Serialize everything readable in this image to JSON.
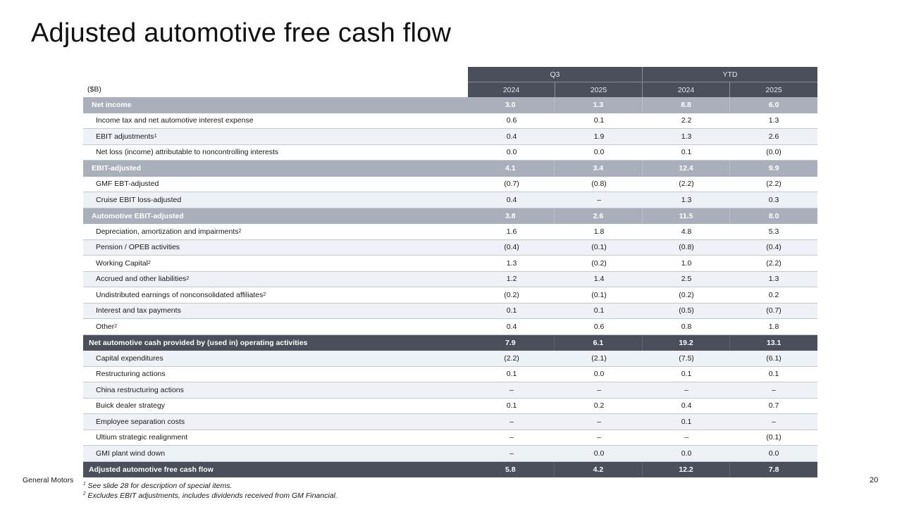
{
  "title": "Adjusted automotive free cash flow",
  "table": {
    "unit_label": "($B)",
    "group_headers": [
      "Q3",
      "YTD"
    ],
    "column_headers": [
      "2024",
      "2025",
      "2024",
      "2025"
    ],
    "rows": [
      {
        "label": "Net income",
        "sup": "",
        "type": "sub",
        "values": [
          "3.0",
          "1.3",
          "8.8",
          "6.0"
        ]
      },
      {
        "label": "Income tax and net automotive interest expense",
        "sup": "",
        "type": "plain",
        "values": [
          "0.6",
          "0.1",
          "2.2",
          "1.3"
        ]
      },
      {
        "label": "EBIT adjustments",
        "sup": "1",
        "type": "alt",
        "values": [
          "0.4",
          "1.9",
          "1.3",
          "2.6"
        ]
      },
      {
        "label": "Net loss (income) attributable to noncontrolling interests",
        "sup": "",
        "type": "plain",
        "values": [
          "0.0",
          "0.0",
          "0.1",
          "(0.0)"
        ]
      },
      {
        "label": "EBIT-adjusted",
        "sup": "",
        "type": "sub",
        "values": [
          "4.1",
          "3.4",
          "12.4",
          "9.9"
        ]
      },
      {
        "label": "GMF EBT-adjusted",
        "sup": "",
        "type": "plain",
        "values": [
          "(0.7)",
          "(0.8)",
          "(2.2)",
          "(2.2)"
        ]
      },
      {
        "label": "Cruise EBIT loss-adjusted",
        "sup": "",
        "type": "alt",
        "values": [
          "0.4",
          "–",
          "1.3",
          "0.3"
        ]
      },
      {
        "label": "Automotive EBIT-adjusted",
        "sup": "",
        "type": "sub",
        "values": [
          "3.8",
          "2.6",
          "11.5",
          "8.0"
        ]
      },
      {
        "label": "Depreciation, amortization and impairments",
        "sup": "2",
        "type": "plain",
        "values": [
          "1.6",
          "1.8",
          "4.8",
          "5.3"
        ]
      },
      {
        "label": "Pension / OPEB activities",
        "sup": "",
        "type": "alt",
        "values": [
          "(0.4)",
          "(0.1)",
          "(0.8)",
          "(0.4)"
        ]
      },
      {
        "label": "Working Capital",
        "sup": "2",
        "type": "plain",
        "values": [
          "1.3",
          "(0.2)",
          "1.0",
          "(2.2)"
        ]
      },
      {
        "label": "Accrued and other liabilities",
        "sup": "2",
        "type": "alt",
        "values": [
          "1.2",
          "1.4",
          "2.5",
          "1.3"
        ]
      },
      {
        "label": "Undistributed earnings of nonconsolidated affiliates",
        "sup": "2",
        "type": "plain",
        "values": [
          "(0.2)",
          "(0.1)",
          "(0.2)",
          "0.2"
        ]
      },
      {
        "label": "Interest and tax payments",
        "sup": "",
        "type": "alt",
        "values": [
          "0.1",
          "0.1",
          "(0.5)",
          "(0.7)"
        ]
      },
      {
        "label": "Other",
        "sup": "2",
        "type": "plain",
        "values": [
          "0.4",
          "0.6",
          "0.8",
          "1.8"
        ]
      },
      {
        "label": "Net automotive cash provided by (used in) operating activities",
        "sup": "",
        "type": "tot",
        "values": [
          "7.9",
          "6.1",
          "19.2",
          "13.1"
        ]
      },
      {
        "label": "Capital expenditures",
        "sup": "",
        "type": "alt",
        "values": [
          "(2.2)",
          "(2.1)",
          "(7.5)",
          "(6.1)"
        ]
      },
      {
        "label": "Restructuring actions",
        "sup": "",
        "type": "plain",
        "values": [
          "0.1",
          "0.0",
          "0.1",
          "0.1"
        ]
      },
      {
        "label": "China restructuring actions",
        "sup": "",
        "type": "alt",
        "values": [
          "–",
          "–",
          "–",
          "–"
        ]
      },
      {
        "label": "Buick dealer strategy",
        "sup": "",
        "type": "plain",
        "values": [
          "0.1",
          "0.2",
          "0.4",
          "0.7"
        ]
      },
      {
        "label": "Employee separation costs",
        "sup": "",
        "type": "alt",
        "values": [
          "–",
          "–",
          "0.1",
          "–"
        ]
      },
      {
        "label": "Ultium strategic realignment",
        "sup": "",
        "type": "plain",
        "values": [
          "–",
          "–",
          "–",
          "(0.1)"
        ]
      },
      {
        "label": "GMI plant wind down",
        "sup": "",
        "type": "alt",
        "values": [
          "–",
          "0.0",
          "0.0",
          "0.0"
        ]
      },
      {
        "label": "Adjusted automotive free cash flow",
        "sup": "",
        "type": "tot",
        "values": [
          "5.8",
          "4.2",
          "12.2",
          "7.8"
        ]
      }
    ]
  },
  "footer": {
    "company": "General Motors",
    "page_number": "20",
    "footnotes": [
      {
        "sup": "1",
        "text": "See slide 28 for description of special items."
      },
      {
        "sup": "2",
        "text": "Excludes EBIT adjustments, includes dividends received from GM Financial."
      }
    ]
  },
  "colors": {
    "header_dark": "#4a4f5b",
    "subtotal_gray": "#aab0bb",
    "alt_row": "#eef1f6",
    "row_border": "#c3c7ce"
  }
}
